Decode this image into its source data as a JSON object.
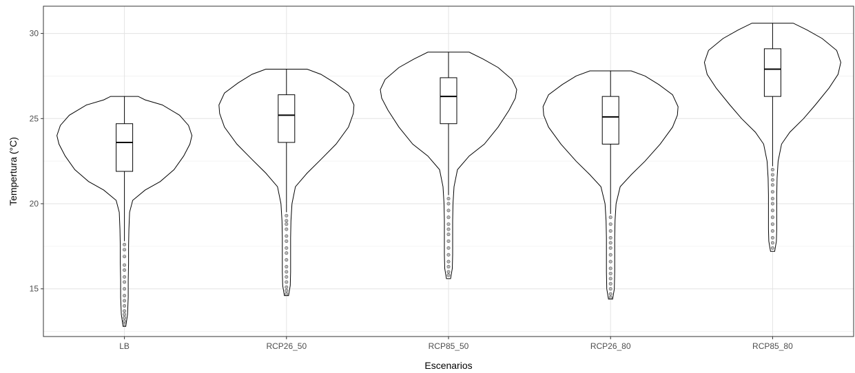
{
  "chart_data": {
    "type": "violin",
    "xlabel": "Escenarios",
    "ylabel": "Tempertura (°C)",
    "ylim": [
      12.2,
      31.6
    ],
    "yticks": [
      15,
      20,
      25,
      30
    ],
    "grid": true,
    "categories": [
      "LB",
      "RCP26_50",
      "RCP85_50",
      "RCP26_80",
      "RCP85_80"
    ],
    "series": [
      {
        "category": "LB",
        "min": 12.8,
        "max": 26.3,
        "box": {
          "q1": 21.9,
          "median": 23.6,
          "q3": 24.7,
          "whisker_low": 17.8,
          "whisker_high": 26.3
        },
        "outliers": [
          17.6,
          17.3,
          16.9,
          16.4,
          16.1,
          15.7,
          15.4,
          15.0,
          14.6,
          14.3,
          14.0,
          13.7,
          13.5,
          13.3,
          13.1,
          12.9
        ],
        "density": [
          [
            12.8,
            0.02
          ],
          [
            13.5,
            0.045
          ],
          [
            14.5,
            0.055
          ],
          [
            15.5,
            0.055
          ],
          [
            16.5,
            0.06
          ],
          [
            17.5,
            0.06
          ],
          [
            18.5,
            0.065
          ],
          [
            19.5,
            0.075
          ],
          [
            20.2,
            0.12
          ],
          [
            20.8,
            0.3
          ],
          [
            21.3,
            0.52
          ],
          [
            22.0,
            0.72
          ],
          [
            22.8,
            0.86
          ],
          [
            23.5,
            0.95
          ],
          [
            24.0,
            0.98
          ],
          [
            24.6,
            0.93
          ],
          [
            25.2,
            0.8
          ],
          [
            25.8,
            0.55
          ],
          [
            26.1,
            0.3
          ],
          [
            26.3,
            0.2
          ]
        ]
      },
      {
        "category": "RCP26_50",
        "min": 14.6,
        "max": 27.9,
        "box": {
          "q1": 23.6,
          "median": 25.2,
          "q3": 26.4,
          "whisker_low": 19.5,
          "whisker_high": 27.9
        },
        "outliers": [
          19.3,
          19.0,
          18.8,
          18.5,
          18.1,
          17.8,
          17.4,
          17.1,
          16.7,
          16.3,
          16.0,
          15.7,
          15.4,
          15.1,
          14.9,
          14.7
        ],
        "density": [
          [
            14.6,
            0.03
          ],
          [
            15.2,
            0.055
          ],
          [
            16.0,
            0.06
          ],
          [
            17.0,
            0.06
          ],
          [
            18.0,
            0.06
          ],
          [
            19.0,
            0.065
          ],
          [
            20.0,
            0.08
          ],
          [
            21.0,
            0.13
          ],
          [
            21.8,
            0.3
          ],
          [
            22.6,
            0.5
          ],
          [
            23.5,
            0.72
          ],
          [
            24.5,
            0.9
          ],
          [
            25.3,
            0.97
          ],
          [
            25.8,
            0.98
          ],
          [
            26.5,
            0.9
          ],
          [
            27.1,
            0.7
          ],
          [
            27.6,
            0.5
          ],
          [
            27.9,
            0.3
          ]
        ]
      },
      {
        "category": "RCP85_50",
        "min": 15.6,
        "max": 28.9,
        "box": {
          "q1": 24.7,
          "median": 26.3,
          "q3": 27.4,
          "whisker_low": 20.5,
          "whisker_high": 28.9
        },
        "outliers": [
          20.3,
          20.0,
          19.6,
          19.2,
          18.8,
          18.5,
          18.2,
          17.8,
          17.4,
          17.0,
          16.6,
          16.3,
          16.0,
          15.8
        ],
        "density": [
          [
            15.6,
            0.03
          ],
          [
            16.2,
            0.055
          ],
          [
            17.0,
            0.06
          ],
          [
            18.0,
            0.06
          ],
          [
            19.0,
            0.06
          ],
          [
            20.0,
            0.065
          ],
          [
            21.0,
            0.08
          ],
          [
            22.0,
            0.13
          ],
          [
            22.8,
            0.3
          ],
          [
            23.5,
            0.52
          ],
          [
            24.5,
            0.72
          ],
          [
            25.5,
            0.88
          ],
          [
            26.2,
            0.97
          ],
          [
            26.7,
            0.99
          ],
          [
            27.3,
            0.92
          ],
          [
            28.0,
            0.72
          ],
          [
            28.5,
            0.5
          ],
          [
            28.9,
            0.3
          ]
        ]
      },
      {
        "category": "RCP26_80",
        "min": 14.4,
        "max": 27.8,
        "box": {
          "q1": 23.5,
          "median": 25.1,
          "q3": 26.3,
          "whisker_low": 19.4,
          "whisker_high": 27.8
        },
        "outliers": [
          19.2,
          18.8,
          18.4,
          18.0,
          17.7,
          17.4,
          17.0,
          16.6,
          16.2,
          15.9,
          15.6,
          15.3,
          15.0,
          14.7,
          14.5
        ],
        "density": [
          [
            14.4,
            0.03
          ],
          [
            15.0,
            0.055
          ],
          [
            16.0,
            0.06
          ],
          [
            17.0,
            0.06
          ],
          [
            18.0,
            0.06
          ],
          [
            19.0,
            0.065
          ],
          [
            20.0,
            0.08
          ],
          [
            21.0,
            0.14
          ],
          [
            21.7,
            0.3
          ],
          [
            22.5,
            0.5
          ],
          [
            23.5,
            0.72
          ],
          [
            24.5,
            0.9
          ],
          [
            25.2,
            0.97
          ],
          [
            25.7,
            0.98
          ],
          [
            26.4,
            0.9
          ],
          [
            27.0,
            0.7
          ],
          [
            27.5,
            0.5
          ],
          [
            27.8,
            0.3
          ]
        ]
      },
      {
        "category": "RCP85_80",
        "min": 17.2,
        "max": 30.6,
        "box": {
          "q1": 26.3,
          "median": 27.9,
          "q3": 29.1,
          "whisker_low": 22.2,
          "whisker_high": 30.6
        },
        "outliers": [
          22.0,
          21.7,
          21.4,
          21.1,
          20.7,
          20.3,
          20.0,
          19.6,
          19.2,
          18.8,
          18.4,
          18.0,
          17.7,
          17.4
        ],
        "density": [
          [
            17.2,
            0.03
          ],
          [
            17.8,
            0.055
          ],
          [
            18.5,
            0.06
          ],
          [
            19.5,
            0.06
          ],
          [
            20.5,
            0.06
          ],
          [
            21.5,
            0.065
          ],
          [
            22.5,
            0.08
          ],
          [
            23.5,
            0.13
          ],
          [
            24.2,
            0.25
          ],
          [
            25.0,
            0.45
          ],
          [
            25.8,
            0.62
          ],
          [
            26.8,
            0.82
          ],
          [
            27.6,
            0.95
          ],
          [
            28.3,
            0.99
          ],
          [
            29.0,
            0.93
          ],
          [
            29.7,
            0.72
          ],
          [
            30.2,
            0.5
          ],
          [
            30.6,
            0.3
          ]
        ]
      }
    ]
  }
}
